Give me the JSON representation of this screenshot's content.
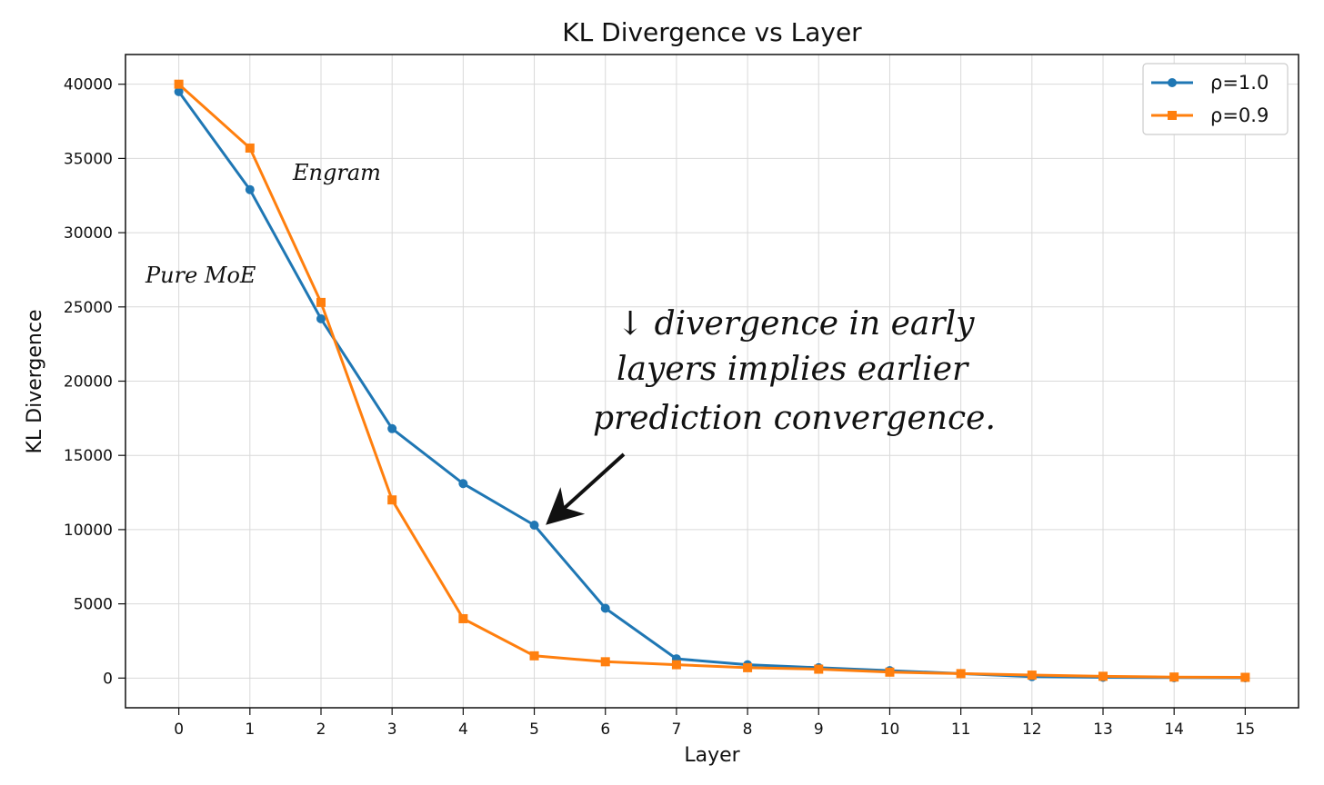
{
  "chart_data": {
    "type": "line",
    "title": "KL Divergence vs Layer",
    "xlabel": "Layer",
    "ylabel": "KL Divergence",
    "x": [
      0,
      1,
      2,
      3,
      4,
      5,
      6,
      7,
      8,
      9,
      10,
      11,
      12,
      13,
      14,
      15
    ],
    "x_ticks": [
      "0",
      "1",
      "2",
      "3",
      "4",
      "5",
      "6",
      "7",
      "8",
      "9",
      "10",
      "11",
      "12",
      "13",
      "14",
      "15"
    ],
    "y_ticks": [
      "0",
      "5000",
      "10000",
      "15000",
      "20000",
      "25000",
      "30000",
      "35000",
      "40000"
    ],
    "xlim": [
      -0.75,
      15.75
    ],
    "ylim": [
      -2000,
      42000
    ],
    "grid": true,
    "legend_position": "top-right",
    "series": [
      {
        "name": "ρ=1.0",
        "color": "#1f77b4",
        "marker": "circle",
        "values": [
          39500,
          32900,
          24200,
          16800,
          13100,
          10300,
          4700,
          1300,
          900,
          700,
          500,
          300,
          100,
          50,
          30,
          20
        ]
      },
      {
        "name": "ρ=0.9",
        "color": "#ff7f0e",
        "marker": "square",
        "values": [
          40000,
          35700,
          25300,
          12000,
          4000,
          1500,
          1100,
          900,
          700,
          600,
          400,
          300,
          200,
          120,
          70,
          50
        ]
      }
    ],
    "annotations": {
      "pure_moe": {
        "text": "Pure MoE",
        "color": "#1f77b4"
      },
      "engram": {
        "text": "Engram",
        "color": "#ff7f0e"
      },
      "note_lines": [
        "↓ divergence in early",
        "layers implies earlier",
        "prediction convergence."
      ]
    }
  }
}
